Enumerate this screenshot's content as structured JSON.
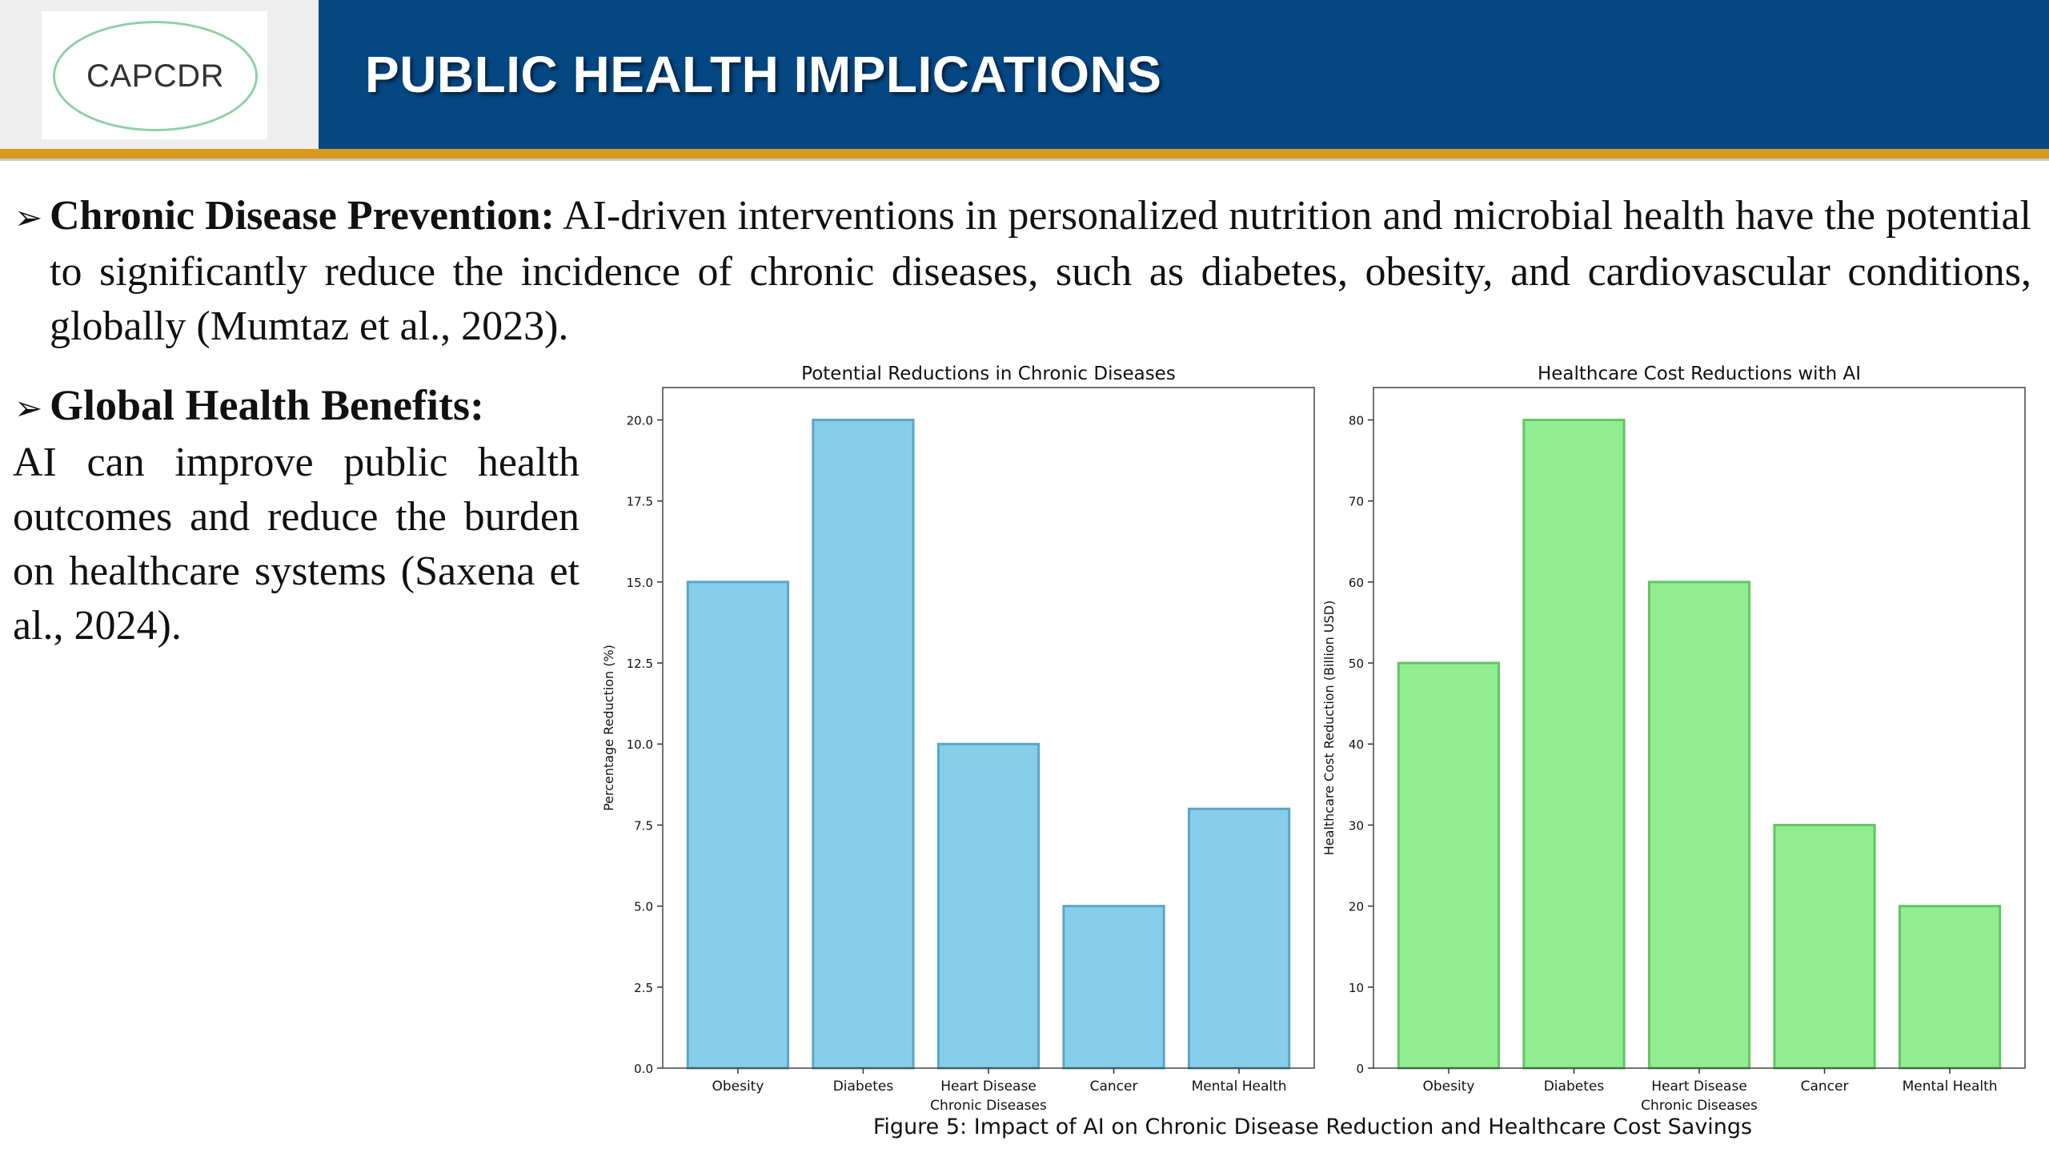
{
  "header": {
    "logo_text": "CAPCDR",
    "title": "PUBLIC HEALTH IMPLICATIONS",
    "colors": {
      "band": "#054783",
      "accent": "#d59a1e",
      "logo_ring": "#8fd0a8"
    }
  },
  "bullets": {
    "arrow_icon": "➢",
    "chronic": {
      "title": "Chronic Disease Prevention:",
      "text": "AI-driven interventions in personalized nutrition and microbial health have the potential to significantly reduce the incidence of chronic diseases, such as diabetes, obesity, and cardiovascular conditions, globally (Mumtaz et al., 2023)."
    },
    "global": {
      "title": "Global Health Benefits:",
      "text": "AI can improve public health outcomes and reduce the burden on healthcare systems (Saxena et al., 2024)."
    }
  },
  "figure_caption": "Figure 5: Impact of AI on Chronic Disease Reduction and Healthcare Cost Savings",
  "chart_data": [
    {
      "type": "bar",
      "title": "Potential Reductions in Chronic Diseases",
      "xlabel": "Chronic Diseases",
      "ylabel": "Percentage Reduction (%)",
      "categories": [
        "Obesity",
        "Diabetes",
        "Heart Disease",
        "Cancer",
        "Mental Health"
      ],
      "values": [
        15,
        20,
        10,
        5,
        8
      ],
      "ylim": [
        0,
        21
      ],
      "yticks": [
        "0.0",
        "2.5",
        "5.0",
        "7.5",
        "10.0",
        "12.5",
        "15.0",
        "17.5",
        "20.0"
      ],
      "bar_color": "#87ceeb",
      "edge_color": "#5aa6c8",
      "grid": false
    },
    {
      "type": "bar",
      "title": "Healthcare Cost Reductions with AI",
      "xlabel": "Chronic Diseases",
      "ylabel": "Healthcare Cost Reduction (Billion USD)",
      "categories": [
        "Obesity",
        "Diabetes",
        "Heart Disease",
        "Cancer",
        "Mental Health"
      ],
      "values": [
        50,
        80,
        60,
        30,
        20
      ],
      "ylim": [
        0,
        84
      ],
      "yticks": [
        "0",
        "10",
        "20",
        "30",
        "40",
        "50",
        "60",
        "70",
        "80"
      ],
      "bar_color": "#90ee90",
      "edge_color": "#63c563",
      "grid": false
    }
  ]
}
